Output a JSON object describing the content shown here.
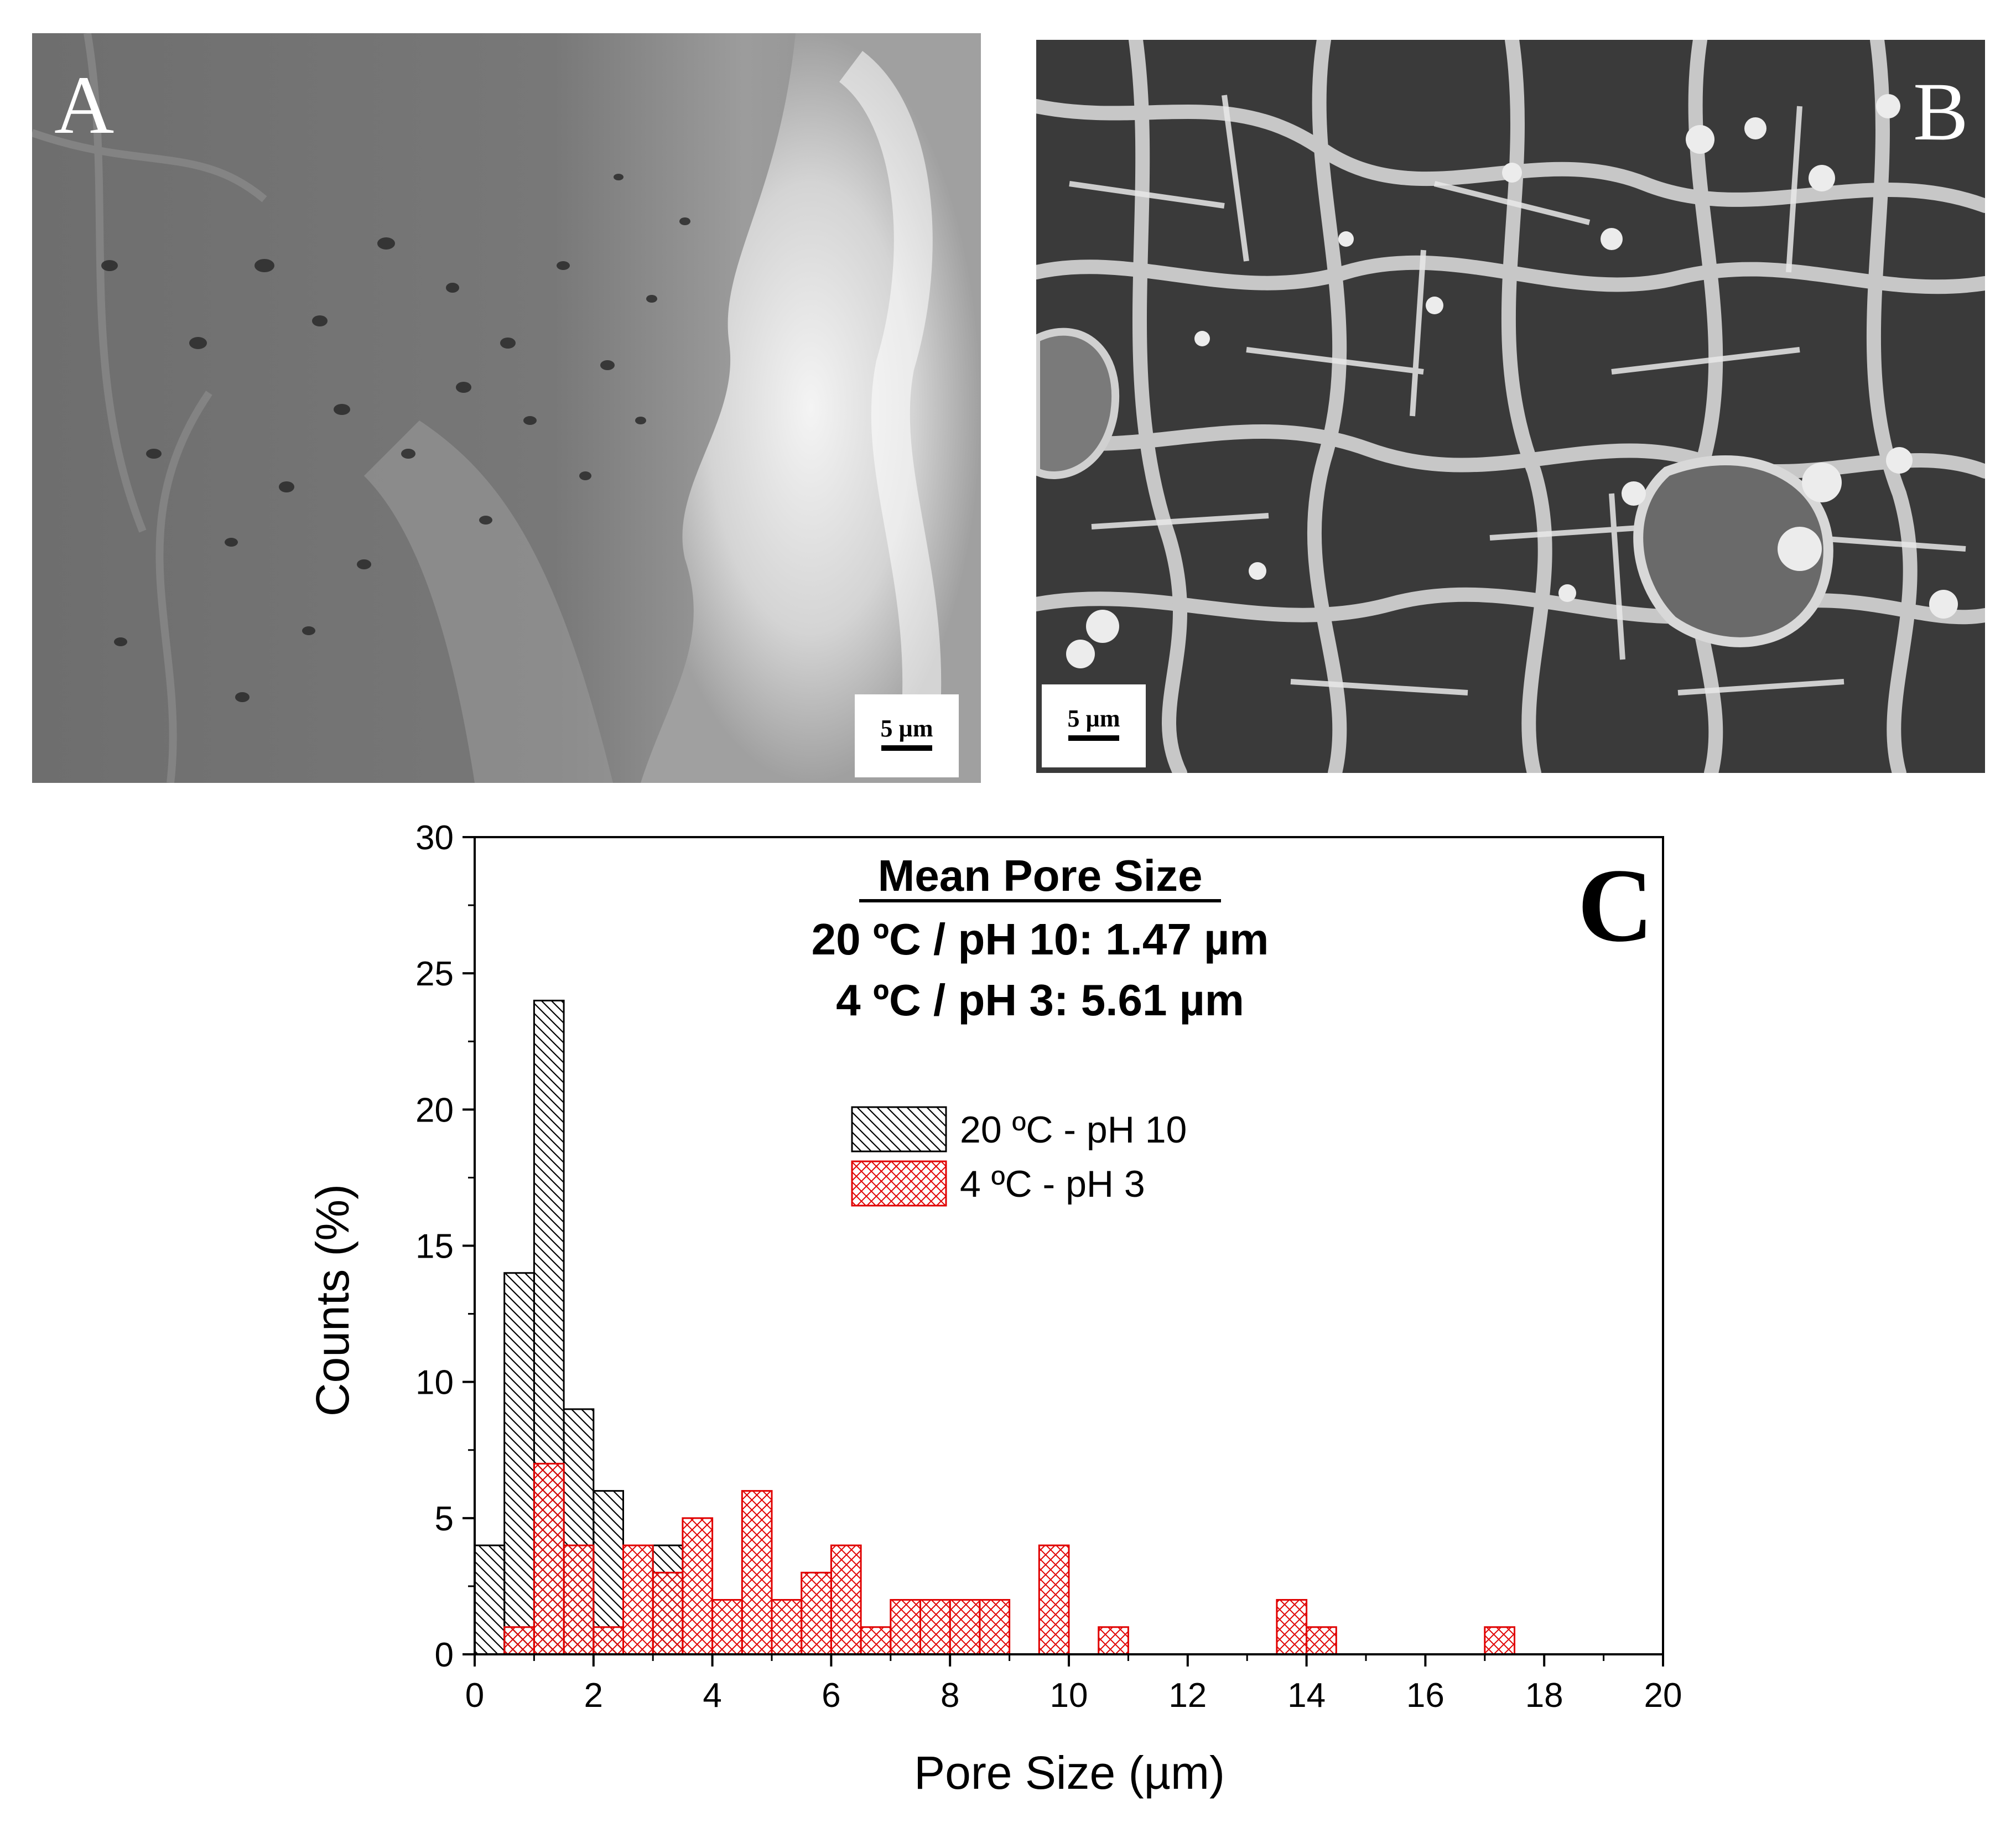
{
  "panels": {
    "a": {
      "letter": "A",
      "scale_label": "5 µm"
    },
    "b": {
      "letter": "B",
      "scale_label": "5 µm"
    }
  },
  "chart_data": {
    "type": "bar",
    "panel_letter": "C",
    "annotation": {
      "heading": "Mean Pore Size",
      "line1": "20 ºC / pH 10: 1.47 µm",
      "line2": "4 ºC / pH 3: 5.61 µm"
    },
    "xlabel": "Pore Size (µm)",
    "ylabel": "Counts (%)",
    "xlim": [
      0,
      20
    ],
    "ylim": [
      0,
      30
    ],
    "xticks": [
      0,
      2,
      4,
      6,
      8,
      10,
      12,
      14,
      16,
      18,
      20
    ],
    "yticks": [
      0,
      5,
      10,
      15,
      20,
      25,
      30
    ],
    "bin_width": 0.5,
    "legend_position": "center",
    "series": [
      {
        "name": "20 ºC - pH 10",
        "color": "#000000",
        "hatch": "diagonal",
        "x": [
          0.0,
          0.5,
          1.0,
          1.5,
          2.0,
          3.0
        ],
        "values": [
          4,
          14,
          24,
          9,
          6,
          4
        ]
      },
      {
        "name": "4 ºC - pH 3",
        "color": "#e00000",
        "hatch": "crosshatch",
        "x": [
          0.5,
          1.0,
          1.5,
          2.0,
          2.5,
          3.0,
          3.5,
          4.0,
          4.5,
          5.0,
          5.5,
          6.0,
          6.5,
          7.0,
          7.5,
          8.0,
          8.5,
          9.5,
          10.5,
          13.5,
          14.0,
          17.0
        ],
        "values": [
          1,
          7,
          4,
          1,
          4,
          3,
          5,
          2,
          6,
          2,
          3,
          4,
          1,
          2,
          2,
          2,
          2,
          4,
          1,
          2,
          1,
          1
        ]
      }
    ]
  }
}
